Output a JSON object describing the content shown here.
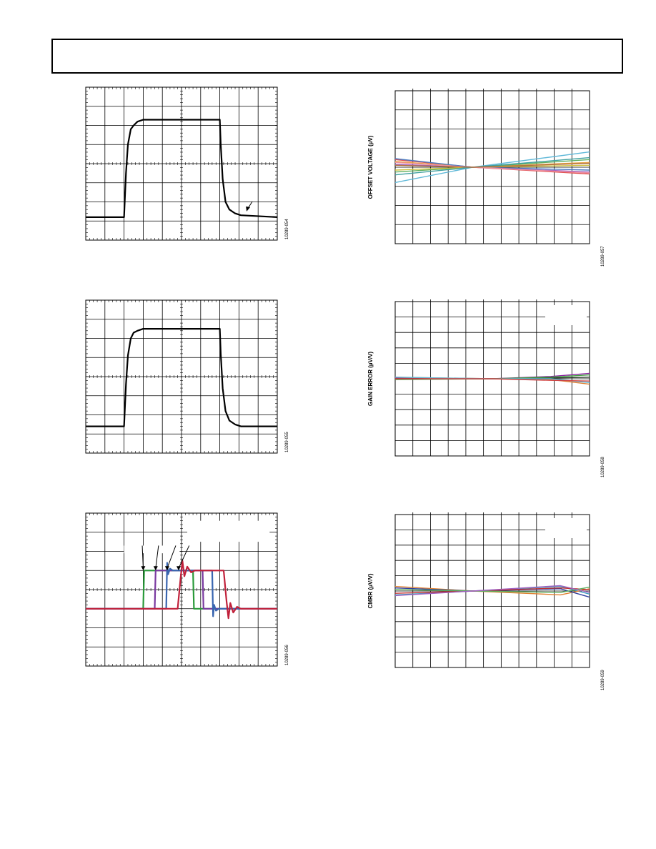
{
  "header": {
    "text": ""
  },
  "figures": [
    {
      "id": "scope-1",
      "kind": "scope",
      "figure_id": "10289-054",
      "trace_color": "#000000",
      "annotation": "arrow",
      "chart_data": {
        "type": "line",
        "grid": true,
        "xlim": [
          0,
          10
        ],
        "ylim": [
          0,
          8
        ],
        "series": [
          {
            "color": "#000000",
            "x": [
              0,
              2.0,
              2.1,
              2.2,
              2.35,
              2.5,
              2.7,
              3.0,
              3.3,
              7.0,
              7.05,
              7.15,
              7.3,
              7.5,
              7.8,
              8.1,
              10
            ],
            "y": [
              1.2,
              1.2,
              3.5,
              5.0,
              5.8,
              6.0,
              6.2,
              6.3,
              6.3,
              6.3,
              5.0,
              3.2,
              2.0,
              1.6,
              1.4,
              1.3,
              1.2
            ]
          }
        ]
      }
    },
    {
      "id": "scope-2",
      "kind": "scope",
      "figure_id": "10289-055",
      "trace_color": "#000000",
      "chart_data": {
        "type": "line",
        "grid": true,
        "xlim": [
          0,
          10
        ],
        "ylim": [
          0,
          8
        ],
        "series": [
          {
            "color": "#000000",
            "x": [
              0,
              2.0,
              2.1,
              2.2,
              2.35,
              2.5,
              2.7,
              3.0,
              3.3,
              7.0,
              7.05,
              7.15,
              7.3,
              7.5,
              7.8,
              8.1,
              10
            ],
            "y": [
              1.4,
              1.4,
              3.6,
              5.1,
              6.0,
              6.3,
              6.4,
              6.5,
              6.5,
              6.5,
              5.2,
              3.4,
              2.2,
              1.7,
              1.5,
              1.4,
              1.4
            ]
          }
        ]
      }
    },
    {
      "id": "scope-3",
      "kind": "scope",
      "figure_id": "10289-056",
      "annotation": "arrows",
      "chart_data": {
        "type": "line",
        "grid": true,
        "xlim": [
          0,
          10
        ],
        "ylim": [
          0,
          8
        ],
        "series": [
          {
            "color": "#2a9a3a",
            "x": [
              0,
              3.0,
              3.05,
              3.2,
              5.6,
              5.65,
              5.8,
              10
            ],
            "y": [
              3.0,
              3.0,
              5.0,
              5.0,
              5.0,
              3.0,
              3.0,
              3.0
            ]
          },
          {
            "color": "#7a3aa0",
            "x": [
              0,
              3.6,
              3.65,
              3.8,
              6.1,
              6.15,
              6.3,
              10
            ],
            "y": [
              3.0,
              3.0,
              5.0,
              5.0,
              5.0,
              3.0,
              3.0,
              3.0
            ]
          },
          {
            "color": "#3a66b0",
            "x": [
              0,
              4.2,
              4.25,
              4.3,
              4.4,
              4.55,
              6.6,
              6.65,
              6.7,
              6.8,
              6.95,
              10
            ],
            "y": [
              3.0,
              3.0,
              5.4,
              4.8,
              5.1,
              5.0,
              5.0,
              2.6,
              3.2,
              2.9,
              3.0,
              3.0
            ]
          },
          {
            "color": "#c0203a",
            "x": [
              0,
              4.8,
              4.95,
              5.05,
              5.15,
              5.3,
              5.5,
              5.7,
              7.2,
              7.35,
              7.45,
              7.55,
              7.7,
              7.9,
              8.1,
              10
            ],
            "y": [
              3.0,
              3.0,
              4.6,
              5.5,
              4.7,
              5.2,
              4.9,
              5.0,
              5.0,
              3.4,
              2.5,
              3.3,
              2.8,
              3.1,
              3.0,
              3.0
            ]
          }
        ]
      }
    },
    {
      "id": "offset-voltage",
      "kind": "multiline",
      "ylabel": "OFFSET VOLTAGE (µV)",
      "figure_id": "10289-057",
      "chart_data": {
        "type": "line",
        "grid": true,
        "ylabel": "OFFSET VOLTAGE (µV)",
        "xlim": [
          0,
          10
        ],
        "ylim": [
          -8,
          8
        ],
        "series": [
          {
            "color": "#5fb8d8",
            "x": [
              0,
              4,
              10
            ],
            "y": [
              -1.6,
              0,
              1.6
            ]
          },
          {
            "color": "#e05050",
            "x": [
              0,
              4,
              10
            ],
            "y": [
              0.8,
              0,
              -0.7
            ]
          },
          {
            "color": "#e8a040",
            "x": [
              0,
              4,
              10
            ],
            "y": [
              0.6,
              0,
              0.5
            ]
          },
          {
            "color": "#4a7ac0",
            "x": [
              0,
              4,
              10
            ],
            "y": [
              0.9,
              0,
              -0.3
            ]
          },
          {
            "color": "#60b060",
            "x": [
              0,
              4,
              10
            ],
            "y": [
              -0.5,
              0,
              0.8
            ]
          },
          {
            "color": "#a060c0",
            "x": [
              0,
              4,
              10
            ],
            "y": [
              0.3,
              0,
              -0.5
            ]
          },
          {
            "color": "#d0c040",
            "x": [
              0,
              4,
              10
            ],
            "y": [
              -0.3,
              0,
              0.2
            ]
          },
          {
            "color": "#f090a0",
            "x": [
              0,
              4,
              10
            ],
            "y": [
              0.5,
              0,
              -0.6
            ]
          },
          {
            "color": "#40a0a0",
            "x": [
              0,
              4,
              10
            ],
            "y": [
              -0.8,
              0,
              1.0
            ]
          },
          {
            "color": "#b07040",
            "x": [
              0,
              4,
              10
            ],
            "y": [
              0.2,
              0,
              0.4
            ]
          }
        ]
      }
    },
    {
      "id": "gain-error",
      "kind": "multiline",
      "ylabel": "GAIN ERROR (µV/V)",
      "figure_id": "10289-058",
      "legend_box": true,
      "chart_data": {
        "type": "line",
        "grid": true,
        "ylabel": "GAIN ERROR (µV/V)",
        "xlim": [
          0,
          10
        ],
        "ylim": [
          -10,
          10
        ],
        "series": [
          {
            "color": "#8a20a0",
            "x": [
              0,
              5,
              8,
              10
            ],
            "y": [
              0.1,
              0,
              0.3,
              0.7
            ]
          },
          {
            "color": "#203020",
            "x": [
              0,
              5,
              8,
              10
            ],
            "y": [
              0,
              0,
              0.1,
              0.2
            ]
          },
          {
            "color": "#e08030",
            "x": [
              0,
              5,
              8,
              10
            ],
            "y": [
              0.2,
              0,
              -0.1,
              -0.7
            ]
          },
          {
            "color": "#40a040",
            "x": [
              0,
              5,
              8,
              10
            ],
            "y": [
              -0.1,
              0,
              0.2,
              0.5
            ]
          },
          {
            "color": "#5fb8d8",
            "x": [
              0,
              5,
              8,
              10
            ],
            "y": [
              0.2,
              0,
              0,
              -0.5
            ]
          },
          {
            "color": "#d04040",
            "x": [
              0,
              5,
              8,
              10
            ],
            "y": [
              0,
              0,
              -0.2,
              -0.3
            ]
          }
        ]
      }
    },
    {
      "id": "cmrr",
      "kind": "multiline",
      "ylabel": "CMRR (µV/V)",
      "figure_id": "10289-059",
      "legend_box": true,
      "chart_data": {
        "type": "line",
        "grid": true,
        "ylabel": "CMRR (µV/V)",
        "xlim": [
          0,
          10
        ],
        "ylim": [
          -10,
          10
        ],
        "series": [
          {
            "color": "#40a0c0",
            "x": [
              0,
              4,
              8.5,
              10
            ],
            "y": [
              -0.5,
              0,
              0.6,
              -0.4
            ]
          },
          {
            "color": "#e08030",
            "x": [
              0,
              4,
              8.5,
              10
            ],
            "y": [
              0.6,
              0,
              -0.5,
              0.3
            ]
          },
          {
            "color": "#3040a0",
            "x": [
              0,
              4,
              8.5,
              10
            ],
            "y": [
              0.4,
              0,
              0.3,
              -0.8
            ]
          },
          {
            "color": "#c03030",
            "x": [
              0,
              4,
              8.5,
              10
            ],
            "y": [
              -0.3,
              0,
              0.4,
              0.2
            ]
          },
          {
            "color": "#60b060",
            "x": [
              0,
              4,
              8.5,
              10
            ],
            "y": [
              0.2,
              0,
              -0.2,
              0.5
            ]
          },
          {
            "color": "#a060c0",
            "x": [
              0,
              4,
              8.5,
              10
            ],
            "y": [
              -0.6,
              0,
              0.7,
              -0.2
            ]
          }
        ]
      }
    }
  ]
}
